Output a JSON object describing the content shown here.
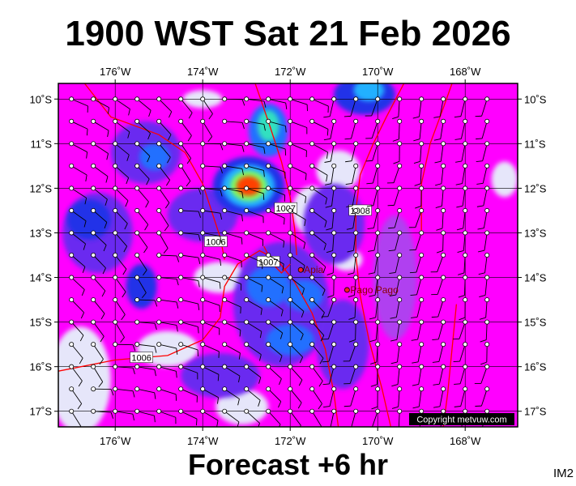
{
  "header": {
    "title": "1900 WST Sat 21 Feb 2026"
  },
  "footer": {
    "subtitle": "Forecast +6 hr",
    "product_code": "IM2"
  },
  "map": {
    "copyright": "Copyright metvuw.com",
    "lon_range": [
      -177.3,
      -166.8
    ],
    "lat_range": [
      -17.35,
      -9.65
    ],
    "lon_ticks": [
      {
        "lon": -176,
        "label": "176˚W"
      },
      {
        "lon": -174,
        "label": "174˚W"
      },
      {
        "lon": -172,
        "label": "172˚W"
      },
      {
        "lon": -170,
        "label": "170˚W"
      },
      {
        "lon": -168,
        "label": "168˚W"
      }
    ],
    "lat_ticks": [
      {
        "lat": -10,
        "label": "10˚S"
      },
      {
        "lat": -11,
        "label": "11˚S"
      },
      {
        "lat": -12,
        "label": "12˚S"
      },
      {
        "lat": -13,
        "label": "13˚S"
      },
      {
        "lat": -14,
        "label": "14˚S"
      },
      {
        "lat": -15,
        "label": "15˚S"
      },
      {
        "lat": -16,
        "label": "16˚S"
      },
      {
        "lat": -17,
        "label": "17˚S"
      }
    ],
    "places": [
      {
        "name": "Apia",
        "lon": -171.76,
        "lat": -13.83
      },
      {
        "name": "Pago Pago",
        "lon": -170.7,
        "lat": -14.28
      }
    ],
    "isobars": [
      {
        "label": "1006",
        "points": [
          [
            -177.3,
            -16.1
          ],
          [
            -176.0,
            -15.85
          ],
          [
            -174.8,
            -15.75
          ],
          [
            -174.0,
            -15.4
          ],
          [
            -173.6,
            -14.9
          ],
          [
            -173.5,
            -14.2
          ],
          [
            -173.2,
            -13.7
          ],
          [
            -172.7,
            -13.4
          ],
          [
            -172.3,
            -13.6
          ],
          [
            -171.9,
            -14.1
          ],
          [
            -171.5,
            -14.8
          ],
          [
            -171.2,
            -15.6
          ],
          [
            -171.0,
            -16.6
          ],
          [
            -170.9,
            -17.35
          ]
        ],
        "label_at": [
          -175.4,
          -15.8
        ]
      },
      {
        "label": "1006",
        "points": [
          [
            -176.7,
            -9.65
          ],
          [
            -176.1,
            -10.4
          ],
          [
            -175.0,
            -10.8
          ],
          [
            -174.4,
            -11.2
          ],
          [
            -174.0,
            -11.9
          ],
          [
            -173.8,
            -12.5
          ],
          [
            -173.6,
            -13.1
          ],
          [
            -173.5,
            -13.6
          ]
        ],
        "label_at": [
          -173.7,
          -13.2
        ]
      },
      {
        "label": "1007",
        "points": [
          [
            -172.6,
            -13.3
          ],
          [
            -172.4,
            -13.7
          ],
          [
            -172.2,
            -13.9
          ],
          [
            -172.0,
            -13.7
          ]
        ],
        "label_at": [
          -172.5,
          -13.65
        ]
      },
      {
        "label": "1007",
        "points": [
          [
            -172.8,
            -9.65
          ],
          [
            -172.5,
            -10.5
          ],
          [
            -172.2,
            -11.4
          ],
          [
            -172.0,
            -12.2
          ],
          [
            -171.9,
            -12.9
          ],
          [
            -171.85,
            -13.5
          ]
        ],
        "label_at": [
          -172.1,
          -12.45
        ]
      },
      {
        "label": "1008",
        "points": [
          [
            -169.4,
            -9.65
          ],
          [
            -169.8,
            -10.4
          ],
          [
            -170.1,
            -11.0
          ],
          [
            -170.4,
            -11.7
          ],
          [
            -170.5,
            -12.5
          ],
          [
            -170.5,
            -13.5
          ],
          [
            -170.4,
            -14.4
          ],
          [
            -170.2,
            -15.4
          ],
          [
            -169.9,
            -16.5
          ],
          [
            -169.7,
            -17.35
          ]
        ],
        "label_at": [
          -170.4,
          -12.5
        ]
      },
      {
        "label": "",
        "points": [
          [
            -168.3,
            -9.65
          ],
          [
            -168.5,
            -10.2
          ],
          [
            -168.8,
            -11.0
          ],
          [
            -169.0,
            -11.9
          ],
          [
            -169.0,
            -13.0
          ]
        ],
        "label_at": null
      },
      {
        "label": "",
        "points": [
          [
            -168.2,
            -14.6
          ],
          [
            -168.3,
            -15.6
          ],
          [
            -168.4,
            -16.6
          ],
          [
            -168.5,
            -17.35
          ]
        ],
        "label_at": null
      }
    ],
    "rain_blobs": [
      {
        "lon": -172.95,
        "lat": -11.95,
        "rx": 0.28,
        "ry": 0.22,
        "level": 9
      },
      {
        "lon": -172.95,
        "lat": -11.95,
        "rx": 0.42,
        "ry": 0.34,
        "level": 7
      },
      {
        "lon": -172.95,
        "lat": -11.95,
        "rx": 0.6,
        "ry": 0.48,
        "level": 5
      },
      {
        "lon": -172.95,
        "lat": -11.95,
        "rx": 0.82,
        "ry": 0.66,
        "level": 3
      },
      {
        "lon": -172.5,
        "lat": -10.6,
        "rx": 0.25,
        "ry": 0.35,
        "level": 6
      },
      {
        "lon": -172.5,
        "lat": -10.7,
        "rx": 0.45,
        "ry": 0.6,
        "level": 4
      },
      {
        "lon": -170.2,
        "lat": -9.8,
        "rx": 0.35,
        "ry": 0.25,
        "level": 5
      },
      {
        "lon": -170.3,
        "lat": -9.9,
        "rx": 0.7,
        "ry": 0.45,
        "level": 3
      },
      {
        "lon": -175.1,
        "lat": -11.3,
        "rx": 0.35,
        "ry": 0.3,
        "level": 4
      },
      {
        "lon": -175.3,
        "lat": -11.2,
        "rx": 0.8,
        "ry": 0.7,
        "level": 2
      },
      {
        "lon": -176.4,
        "lat": -13.0,
        "rx": 0.8,
        "ry": 0.9,
        "level": 2
      },
      {
        "lon": -176.6,
        "lat": -12.7,
        "rx": 0.5,
        "ry": 0.45,
        "level": 3
      },
      {
        "lon": -175.4,
        "lat": -14.2,
        "rx": 0.35,
        "ry": 0.5,
        "level": 3
      },
      {
        "lon": -172.5,
        "lat": -14.2,
        "rx": 0.5,
        "ry": 0.45,
        "level": 4
      },
      {
        "lon": -171.7,
        "lat": -14.4,
        "rx": 0.45,
        "ry": 0.35,
        "level": 4
      },
      {
        "lon": -172.0,
        "lat": -15.4,
        "rx": 0.55,
        "ry": 0.35,
        "level": 4
      },
      {
        "lon": -172.2,
        "lat": -14.6,
        "rx": 1.1,
        "ry": 1.4,
        "level": 2
      },
      {
        "lon": -174.0,
        "lat": -12.6,
        "rx": 0.8,
        "ry": 0.6,
        "level": 2
      },
      {
        "lon": -171.0,
        "lat": -12.8,
        "rx": 0.7,
        "ry": 0.9,
        "level": 2
      },
      {
        "lon": -170.8,
        "lat": -15.5,
        "rx": 0.6,
        "ry": 1.0,
        "level": 2
      },
      {
        "lon": -173.6,
        "lat": -16.2,
        "rx": 0.9,
        "ry": 0.5,
        "level": 2
      },
      {
        "lon": -169.6,
        "lat": -14.0,
        "rx": 0.5,
        "ry": 1.4,
        "level": 1
      }
    ],
    "dry_areas": [
      {
        "lon": -176.8,
        "lat": -16.3,
        "rx": 0.7,
        "ry": 1.2
      },
      {
        "lon": -174.8,
        "lat": -15.6,
        "rx": 0.7,
        "ry": 0.4
      },
      {
        "lon": -173.6,
        "lat": -14.0,
        "rx": 0.6,
        "ry": 0.35
      },
      {
        "lon": -171.5,
        "lat": -12.5,
        "rx": 0.45,
        "ry": 0.55
      },
      {
        "lon": -170.9,
        "lat": -11.6,
        "rx": 0.5,
        "ry": 0.45
      },
      {
        "lon": -174.0,
        "lat": -10.0,
        "rx": 0.45,
        "ry": 0.2
      },
      {
        "lon": -170.7,
        "lat": -13.6,
        "rx": 0.35,
        "ry": 0.25
      },
      {
        "lon": -167.1,
        "lat": -11.8,
        "rx": 0.3,
        "ry": 0.4
      },
      {
        "lon": -173.1,
        "lat": -16.9,
        "rx": 0.6,
        "ry": 0.4
      }
    ],
    "colors": {
      "base": "#ff00ff",
      "levels": [
        "#e6e6fa",
        "#b040f0",
        "#6a2af0",
        "#2030e8",
        "#2070ff",
        "#20b0ff",
        "#30e0c0",
        "#80ff60",
        "#ffff00",
        "#ff4000"
      ],
      "isobar": "#ff0000",
      "grid": "#000000"
    }
  }
}
